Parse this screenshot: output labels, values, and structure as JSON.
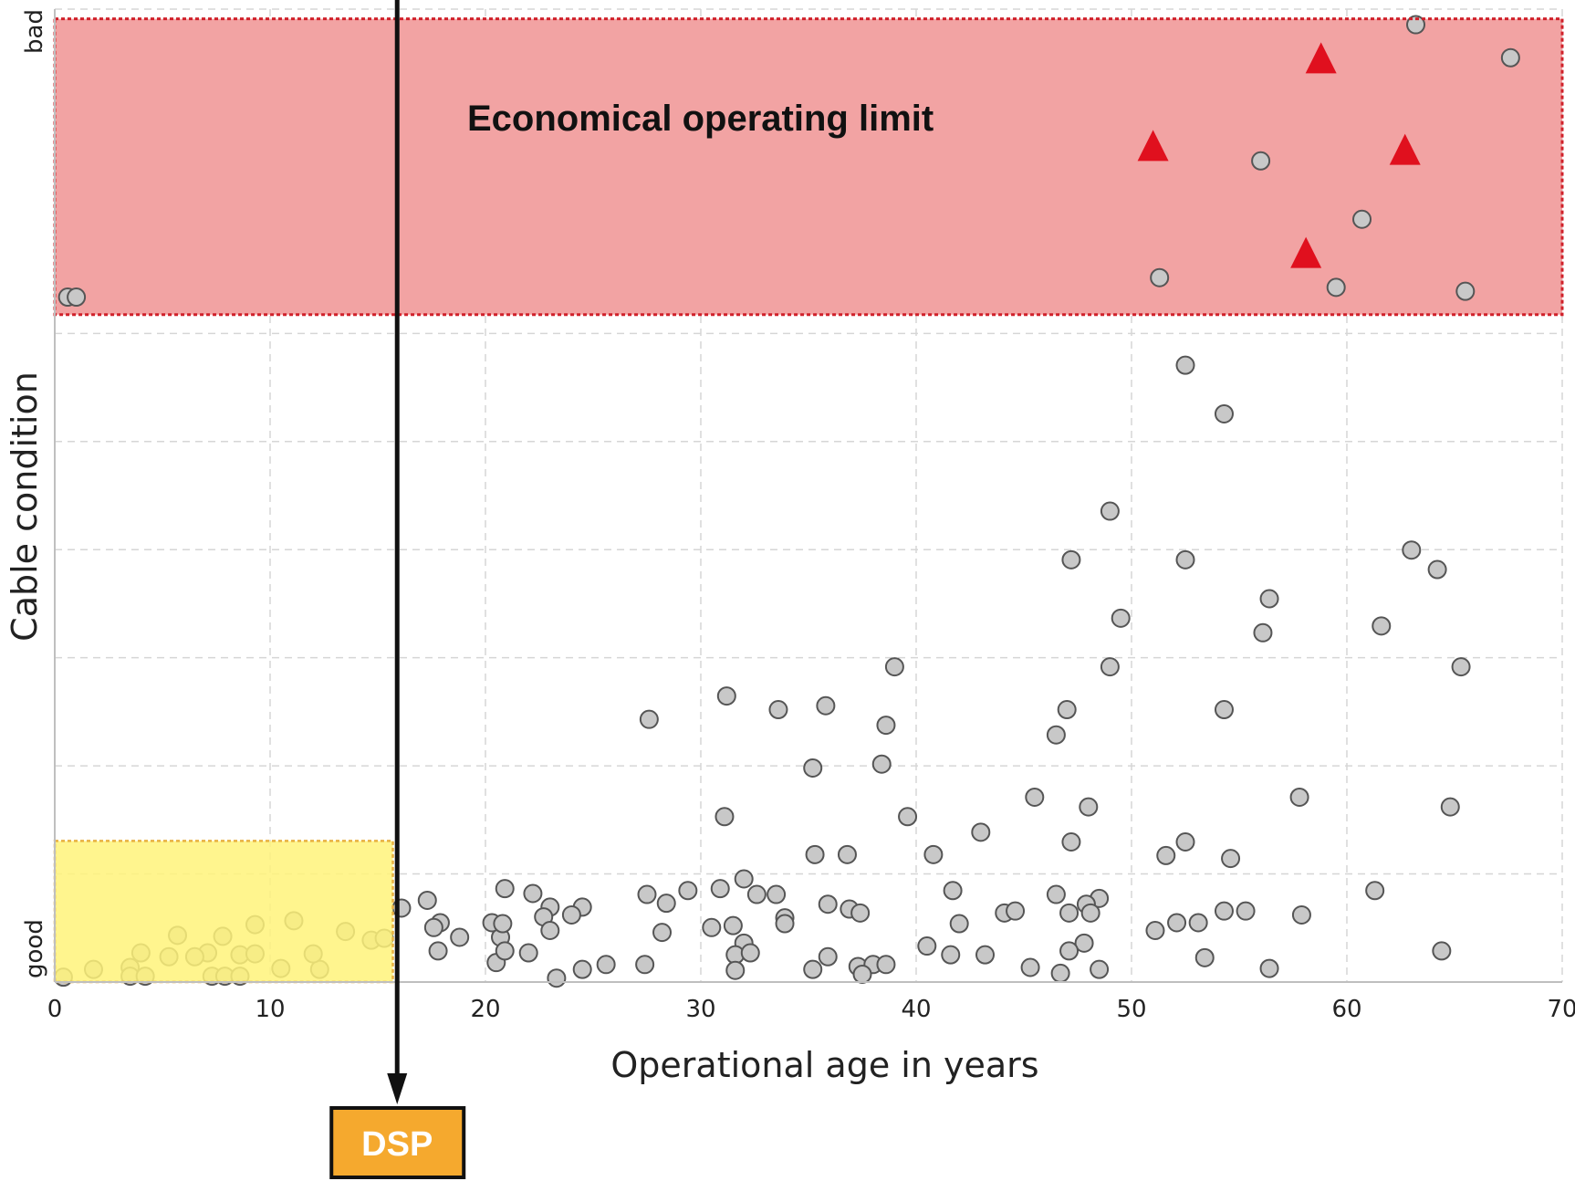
{
  "chart_data": {
    "type": "scatter",
    "title": "",
    "xlabel": "Operational age in years",
    "ylabel": "Cable condition",
    "xlim": [
      0,
      70
    ],
    "ylim": [
      0,
      100
    ],
    "x_ticks": [
      0,
      10,
      20,
      30,
      40,
      50,
      60,
      70
    ],
    "y_end_labels": {
      "bottom": "good",
      "top": "bad"
    },
    "y_scale": "ordinal condition scale, 0 = good, 100 = bad (no numeric tick labels)",
    "grid": true,
    "colors": {
      "point_fill": "#c8c8c8",
      "point_stroke": "#555555",
      "limit_zone_fill": "#f2a3a3",
      "limit_zone_border": "#d0202a",
      "triangle": "#e0101e",
      "dsp_zone_fill": "#fff37a",
      "dsp_zone_border": "#e8b040",
      "dsp_box_fill": "#f5a92e",
      "dsp_arrow": "#111111"
    },
    "annotations": {
      "limit_zone": {
        "label": "Economical operating limit",
        "y_from": 99,
        "y_to": 68.6
      },
      "dsp_zone": {
        "x_from": 0,
        "x_to": 15.7,
        "y_from": 0,
        "y_to": 14.5
      },
      "dsp_marker": {
        "label": "DSP",
        "x": 15.9
      }
    },
    "triangles": [
      {
        "x": 51.0,
        "y": 85.8
      },
      {
        "x": 58.8,
        "y": 94.8
      },
      {
        "x": 62.7,
        "y": 85.4
      },
      {
        "x": 58.1,
        "y": 74.8
      }
    ],
    "points": [
      {
        "x": 0.6,
        "y": 70.4
      },
      {
        "x": 1.0,
        "y": 70.4
      },
      {
        "x": 51.3,
        "y": 72.4
      },
      {
        "x": 59.5,
        "y": 71.4
      },
      {
        "x": 65.5,
        "y": 71.0
      },
      {
        "x": 60.7,
        "y": 78.4
      },
      {
        "x": 56.0,
        "y": 84.4
      },
      {
        "x": 63.2,
        "y": 98.4
      },
      {
        "x": 67.6,
        "y": 95.0
      },
      {
        "x": 52.5,
        "y": 63.4
      },
      {
        "x": 54.3,
        "y": 58.4
      },
      {
        "x": 49.0,
        "y": 48.4
      },
      {
        "x": 47.2,
        "y": 43.4
      },
      {
        "x": 52.5,
        "y": 43.4
      },
      {
        "x": 63.0,
        "y": 44.4
      },
      {
        "x": 64.2,
        "y": 42.4
      },
      {
        "x": 56.4,
        "y": 39.4
      },
      {
        "x": 49.5,
        "y": 37.4
      },
      {
        "x": 56.1,
        "y": 35.9
      },
      {
        "x": 61.6,
        "y": 36.6
      },
      {
        "x": 65.3,
        "y": 32.4
      },
      {
        "x": 49.0,
        "y": 32.4
      },
      {
        "x": 39.0,
        "y": 32.4
      },
      {
        "x": 31.2,
        "y": 29.4
      },
      {
        "x": 33.6,
        "y": 28.0
      },
      {
        "x": 35.8,
        "y": 28.4
      },
      {
        "x": 47.0,
        "y": 28.0
      },
      {
        "x": 54.3,
        "y": 28.0
      },
      {
        "x": 38.6,
        "y": 26.4
      },
      {
        "x": 46.5,
        "y": 25.4
      },
      {
        "x": 27.6,
        "y": 27.0
      },
      {
        "x": 38.4,
        "y": 22.4
      },
      {
        "x": 35.2,
        "y": 22.0
      },
      {
        "x": 45.5,
        "y": 19.0
      },
      {
        "x": 48.0,
        "y": 18.0
      },
      {
        "x": 57.8,
        "y": 19.0
      },
      {
        "x": 64.8,
        "y": 18.0
      },
      {
        "x": 31.1,
        "y": 17.0
      },
      {
        "x": 39.6,
        "y": 17.0
      },
      {
        "x": 43.0,
        "y": 15.4
      },
      {
        "x": 47.2,
        "y": 14.4
      },
      {
        "x": 52.5,
        "y": 14.4
      },
      {
        "x": 40.8,
        "y": 13.1
      },
      {
        "x": 35.3,
        "y": 13.1
      },
      {
        "x": 36.8,
        "y": 13.1
      },
      {
        "x": 51.6,
        "y": 13.0
      },
      {
        "x": 54.6,
        "y": 12.7
      },
      {
        "x": 32.0,
        "y": 10.6
      },
      {
        "x": 41.7,
        "y": 9.4
      },
      {
        "x": 46.5,
        "y": 9.0
      },
      {
        "x": 61.3,
        "y": 9.4
      },
      {
        "x": 20.9,
        "y": 9.6
      },
      {
        "x": 22.2,
        "y": 9.1
      },
      {
        "x": 29.4,
        "y": 9.4
      },
      {
        "x": 27.5,
        "y": 9.0
      },
      {
        "x": 30.9,
        "y": 9.6
      },
      {
        "x": 32.6,
        "y": 9.0
      },
      {
        "x": 33.5,
        "y": 9.0
      },
      {
        "x": 28.4,
        "y": 8.1
      },
      {
        "x": 48.5,
        "y": 8.6
      },
      {
        "x": 17.3,
        "y": 8.4
      },
      {
        "x": 35.9,
        "y": 8.0
      },
      {
        "x": 47.9,
        "y": 8.0
      },
      {
        "x": 16.1,
        "y": 7.6
      },
      {
        "x": 23.0,
        "y": 7.7
      },
      {
        "x": 24.5,
        "y": 7.7
      },
      {
        "x": 36.9,
        "y": 7.5
      },
      {
        "x": 37.4,
        "y": 7.1
      },
      {
        "x": 44.1,
        "y": 7.1
      },
      {
        "x": 44.6,
        "y": 7.3
      },
      {
        "x": 47.1,
        "y": 7.1
      },
      {
        "x": 48.1,
        "y": 7.1
      },
      {
        "x": 54.3,
        "y": 7.3
      },
      {
        "x": 55.3,
        "y": 7.3
      },
      {
        "x": 57.9,
        "y": 6.9
      },
      {
        "x": 22.7,
        "y": 6.7
      },
      {
        "x": 24.0,
        "y": 6.9
      },
      {
        "x": 33.9,
        "y": 6.6
      },
      {
        "x": 42.0,
        "y": 6.0
      },
      {
        "x": 33.9,
        "y": 6.0
      },
      {
        "x": 17.9,
        "y": 6.1
      },
      {
        "x": 31.5,
        "y": 5.8
      },
      {
        "x": 53.1,
        "y": 6.1
      },
      {
        "x": 13.5,
        "y": 5.2
      },
      {
        "x": 5.7,
        "y": 4.8
      },
      {
        "x": 23.0,
        "y": 5.3
      },
      {
        "x": 28.2,
        "y": 5.1
      },
      {
        "x": 51.1,
        "y": 5.3
      },
      {
        "x": 14.7,
        "y": 4.3
      },
      {
        "x": 20.7,
        "y": 4.6
      },
      {
        "x": 32.0,
        "y": 4.0
      },
      {
        "x": 40.5,
        "y": 3.7
      },
      {
        "x": 47.8,
        "y": 4.0
      },
      {
        "x": 64.4,
        "y": 3.2
      },
      {
        "x": 4.0,
        "y": 3.0
      },
      {
        "x": 7.1,
        "y": 3.0
      },
      {
        "x": 8.6,
        "y": 2.8
      },
      {
        "x": 6.5,
        "y": 2.6
      },
      {
        "x": 22.0,
        "y": 3.0
      },
      {
        "x": 31.6,
        "y": 2.8
      },
      {
        "x": 32.3,
        "y": 3.0
      },
      {
        "x": 35.9,
        "y": 2.6
      },
      {
        "x": 41.6,
        "y": 2.8
      },
      {
        "x": 43.2,
        "y": 2.8
      },
      {
        "x": 47.1,
        "y": 3.2
      },
      {
        "x": 53.4,
        "y": 2.5
      },
      {
        "x": 1.8,
        "y": 1.3
      },
      {
        "x": 3.5,
        "y": 1.5
      },
      {
        "x": 12.3,
        "y": 1.3
      },
      {
        "x": 20.5,
        "y": 2.0
      },
      {
        "x": 24.5,
        "y": 1.3
      },
      {
        "x": 25.6,
        "y": 1.8
      },
      {
        "x": 27.4,
        "y": 1.8
      },
      {
        "x": 35.2,
        "y": 1.3
      },
      {
        "x": 37.3,
        "y": 1.6
      },
      {
        "x": 38.0,
        "y": 1.8
      },
      {
        "x": 38.6,
        "y": 1.8
      },
      {
        "x": 45.3,
        "y": 1.5
      },
      {
        "x": 56.4,
        "y": 1.4
      },
      {
        "x": 0.4,
        "y": 0.5
      },
      {
        "x": 3.5,
        "y": 0.6
      },
      {
        "x": 4.2,
        "y": 0.6
      },
      {
        "x": 7.3,
        "y": 0.6
      },
      {
        "x": 7.9,
        "y": 0.6
      },
      {
        "x": 8.6,
        "y": 0.6
      },
      {
        "x": 23.3,
        "y": 0.4
      },
      {
        "x": 31.6,
        "y": 1.2
      },
      {
        "x": 37.5,
        "y": 0.8
      },
      {
        "x": 46.7,
        "y": 0.9
      },
      {
        "x": 48.5,
        "y": 1.3
      },
      {
        "x": 10.5,
        "y": 1.4
      },
      {
        "x": 5.3,
        "y": 2.6
      },
      {
        "x": 9.3,
        "y": 2.9
      },
      {
        "x": 12.0,
        "y": 2.9
      },
      {
        "x": 17.8,
        "y": 3.2
      },
      {
        "x": 20.9,
        "y": 3.2
      },
      {
        "x": 7.8,
        "y": 4.7
      },
      {
        "x": 15.3,
        "y": 4.5
      },
      {
        "x": 18.8,
        "y": 4.6
      },
      {
        "x": 17.6,
        "y": 5.6
      },
      {
        "x": 20.3,
        "y": 6.1
      },
      {
        "x": 20.8,
        "y": 6.0
      },
      {
        "x": 30.5,
        "y": 5.6
      },
      {
        "x": 9.3,
        "y": 5.9
      },
      {
        "x": 11.1,
        "y": 6.3
      },
      {
        "x": 52.1,
        "y": 6.1
      }
    ],
    "series": [
      {
        "values_key": "points"
      },
      {
        "values_key": "triangles"
      }
    ]
  }
}
